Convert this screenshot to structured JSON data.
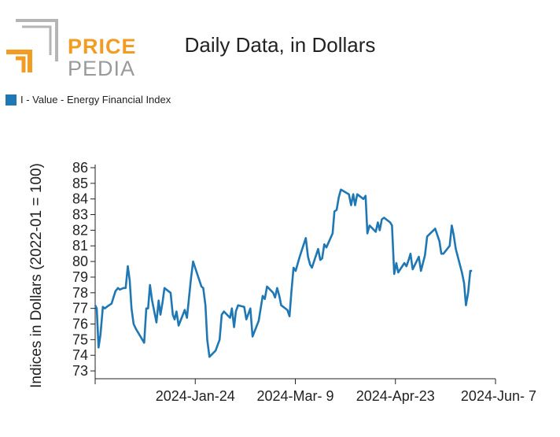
{
  "brand": {
    "price": "PRICE",
    "pedia": "PEDIA",
    "accent": "#f39c24",
    "grey": "#b5b5b5"
  },
  "colors": {
    "series": "#1f77b4"
  },
  "chart_data": {
    "type": "line",
    "title": "Daily Data, in Dollars",
    "xlabel": "",
    "ylabel": "Indices in Dollars (2022-01 = 100)",
    "ylim": [
      72.5,
      86.2
    ],
    "yticks": [
      73,
      74,
      75,
      76,
      77,
      78,
      79,
      80,
      81,
      82,
      83,
      84,
      85,
      86
    ],
    "xlim": [
      0,
      130
    ],
    "xticks": [
      {
        "pos": 0,
        "label": ""
      },
      {
        "pos": 32.5,
        "label": "2024-Jan-24"
      },
      {
        "pos": 65,
        "label": "2024-Mar- 9"
      },
      {
        "pos": 97.5,
        "label": "2024-Apr-23"
      },
      {
        "pos": 130,
        "label": "2024-Jun- 7"
      }
    ],
    "legend": "top-left",
    "series": [
      {
        "name": "I - Value - Energy Financial Index",
        "values": [
          [
            0,
            77.2
          ],
          [
            0.5,
            77.0
          ],
          [
            1.1,
            74.5
          ],
          [
            1.7,
            75.3
          ],
          [
            2.5,
            77.1
          ],
          [
            3.1,
            77.0
          ],
          [
            4.5,
            77.2
          ],
          [
            5.3,
            77.3
          ],
          [
            6.6,
            78.1
          ],
          [
            7.4,
            78.3
          ],
          [
            8.0,
            78.2
          ],
          [
            9.2,
            78.3
          ],
          [
            9.9,
            78.3
          ],
          [
            10.6,
            79.7
          ],
          [
            11.2,
            78.8
          ],
          [
            11.8,
            77.0
          ],
          [
            12.5,
            76.0
          ],
          [
            13.2,
            75.7
          ],
          [
            15.9,
            74.8
          ],
          [
            16.6,
            77.0
          ],
          [
            17.2,
            77.0
          ],
          [
            17.8,
            78.5
          ],
          [
            18.5,
            77.5
          ],
          [
            19.9,
            76.1
          ],
          [
            20.6,
            77.5
          ],
          [
            21.2,
            76.6
          ],
          [
            21.9,
            77.4
          ],
          [
            22.5,
            78.3
          ],
          [
            23.8,
            78.1
          ],
          [
            24.5,
            78.0
          ],
          [
            25.2,
            76.6
          ],
          [
            25.8,
            76.3
          ],
          [
            26.4,
            76.8
          ],
          [
            27.1,
            75.9
          ],
          [
            29.1,
            76.9
          ],
          [
            29.8,
            76.4
          ],
          [
            31.1,
            78.9
          ],
          [
            31.8,
            80.0
          ],
          [
            34.5,
            78.4
          ],
          [
            35.1,
            78.3
          ],
          [
            35.8,
            77.2
          ],
          [
            36.4,
            75.0
          ],
          [
            37.1,
            73.9
          ],
          [
            39.1,
            74.3
          ],
          [
            40.4,
            75.0
          ],
          [
            41.1,
            76.6
          ],
          [
            41.8,
            76.8
          ],
          [
            43.8,
            76.4
          ],
          [
            44.4,
            77.0
          ],
          [
            45.1,
            75.8
          ],
          [
            45.7,
            76.8
          ],
          [
            46.4,
            77.2
          ],
          [
            48.4,
            77.1
          ],
          [
            49.1,
            76.3
          ],
          [
            50.4,
            77.0
          ],
          [
            51.1,
            75.2
          ],
          [
            53.1,
            76.2
          ],
          [
            54.4,
            77.8
          ],
          [
            55.1,
            77.6
          ],
          [
            55.8,
            78.4
          ],
          [
            57.8,
            78.0
          ],
          [
            58.4,
            77.7
          ],
          [
            59.1,
            78.3
          ],
          [
            59.8,
            77.8
          ],
          [
            60.4,
            77.2
          ],
          [
            62.4,
            76.9
          ],
          [
            63.1,
            76.5
          ],
          [
            63.7,
            78.0
          ],
          [
            64.4,
            79.6
          ],
          [
            65.1,
            79.4
          ],
          [
            66.4,
            80.3
          ],
          [
            68.4,
            81.5
          ],
          [
            69.1,
            80.3
          ],
          [
            69.8,
            79.8
          ],
          [
            70.4,
            79.6
          ],
          [
            72.4,
            80.8
          ],
          [
            73.1,
            80.1
          ],
          [
            73.7,
            80.2
          ],
          [
            74.4,
            81.1
          ],
          [
            75.1,
            80.9
          ],
          [
            77.1,
            81.8
          ],
          [
            77.7,
            83.2
          ],
          [
            78.4,
            83.3
          ],
          [
            79.1,
            84.1
          ],
          [
            79.8,
            84.6
          ],
          [
            82.4,
            84.3
          ],
          [
            83.1,
            83.6
          ],
          [
            83.8,
            84.3
          ],
          [
            84.4,
            83.6
          ],
          [
            85.1,
            84.3
          ],
          [
            87.1,
            84.0
          ],
          [
            87.8,
            84.2
          ],
          [
            88.4,
            81.8
          ],
          [
            89.1,
            82.3
          ],
          [
            91.1,
            81.9
          ],
          [
            91.8,
            82.5
          ],
          [
            92.4,
            82.0
          ],
          [
            93.1,
            82.7
          ],
          [
            93.8,
            82.8
          ],
          [
            95.8,
            82.5
          ],
          [
            96.4,
            82.3
          ],
          [
            97.1,
            79.2
          ],
          [
            97.8,
            79.9
          ],
          [
            98.4,
            79.3
          ],
          [
            100.4,
            79.9
          ],
          [
            101.1,
            79.7
          ],
          [
            101.8,
            80.1
          ],
          [
            102.4,
            80.5
          ],
          [
            103.1,
            79.5
          ],
          [
            105.1,
            80.3
          ],
          [
            105.8,
            79.4
          ],
          [
            107.1,
            80.4
          ],
          [
            107.8,
            81.6
          ],
          [
            110.4,
            82.1
          ],
          [
            111.8,
            81.3
          ],
          [
            112.4,
            80.5
          ],
          [
            113.1,
            80.5
          ],
          [
            115.1,
            81.0
          ],
          [
            115.8,
            82.3
          ],
          [
            116.4,
            81.7
          ],
          [
            117.1,
            80.8
          ],
          [
            119.1,
            79.3
          ],
          [
            119.8,
            78.6
          ],
          [
            120.4,
            77.2
          ],
          [
            121.1,
            78.0
          ],
          [
            121.8,
            79.4
          ],
          [
            122.4,
            79.4
          ]
        ]
      }
    ]
  }
}
